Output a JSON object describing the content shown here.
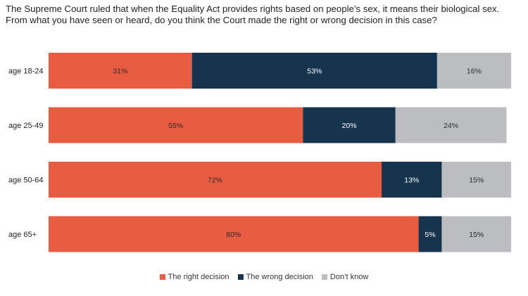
{
  "chart_data": {
    "type": "bar",
    "orientation": "horizontal",
    "stacked": true,
    "title_lines": [
      "The Supreme Court ruled that when the Equality Act provides rights based on people’s sex, it means their biological sex.",
      "From what you have seen or heard, do you think the Court made the right or wrong decision in this case?"
    ],
    "categories": [
      "age 18-24",
      "age 25-49",
      "age 50-64",
      "age 65+"
    ],
    "series": [
      {
        "name": "The right decision",
        "color": "#e85c41",
        "values": [
          31,
          55,
          72,
          80
        ]
      },
      {
        "name": "The wrong decision",
        "color": "#16344e",
        "values": [
          53,
          20,
          13,
          5
        ]
      },
      {
        "name": "Don’t know",
        "color": "#bcbdc0",
        "values": [
          16,
          24,
          15,
          15
        ]
      }
    ],
    "value_suffix": "%",
    "xlim": [
      0,
      100
    ],
    "legend_position": "bottom-center",
    "grid": false
  }
}
